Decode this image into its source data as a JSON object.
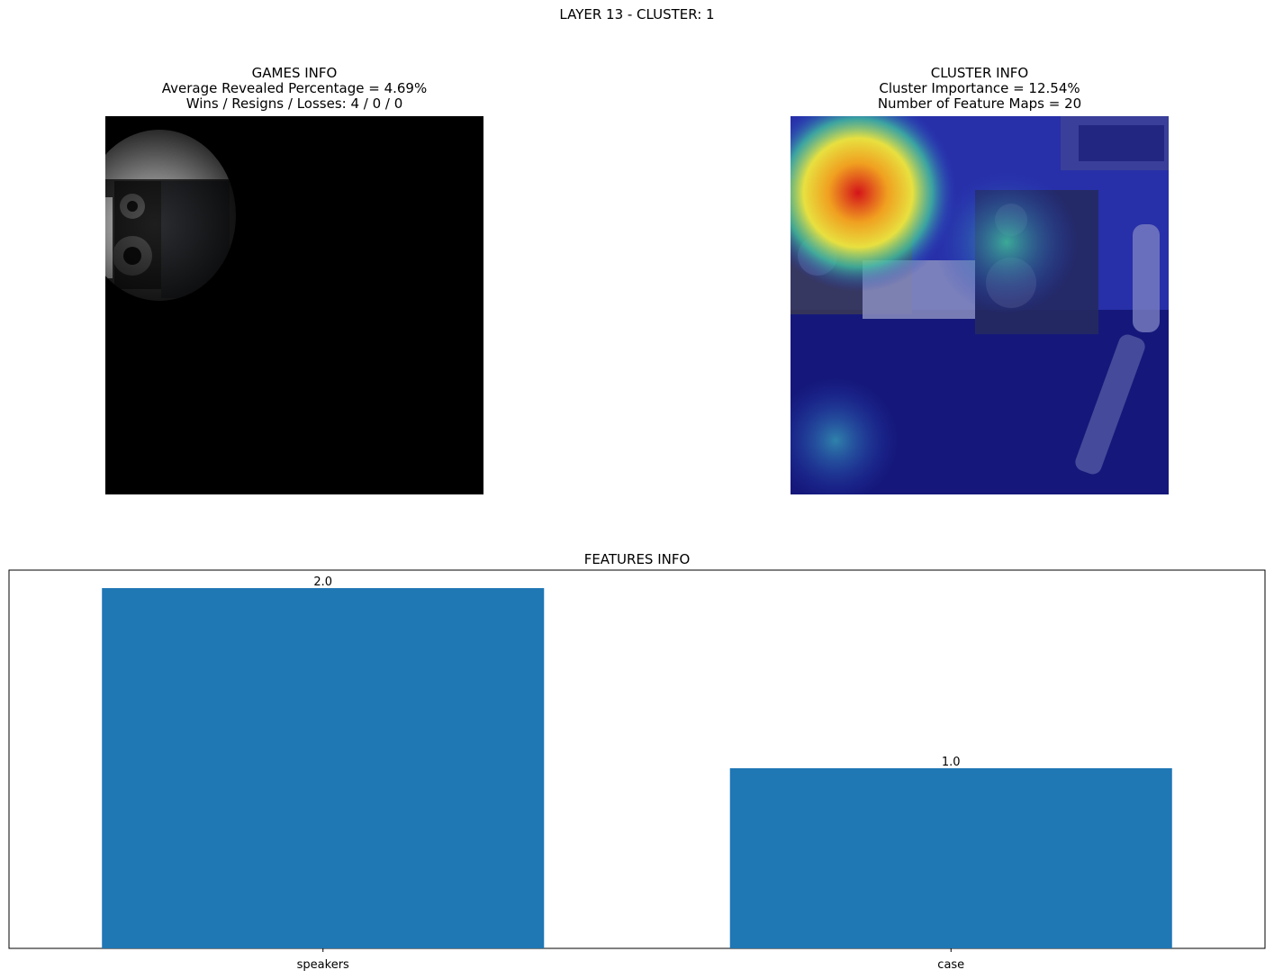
{
  "suptitle": "LAYER 13 - CLUSTER: 1",
  "games_info": {
    "title": "GAMES INFO",
    "line1": "Average Revealed Percentage = 4.69%",
    "line2": "Wins / Resigns / Losses: 4 / 0 / 0"
  },
  "cluster_info": {
    "title": "CLUSTER INFO",
    "line1": "Cluster Importance = 12.54%",
    "line2": "Number of Feature Maps = 20"
  },
  "chart_data": {
    "type": "bar",
    "title": "FEATURES INFO",
    "categories": [
      "speakers",
      "case"
    ],
    "values": [
      2.0,
      1.0
    ],
    "value_labels": [
      "2.0",
      "1.0"
    ],
    "xlabel": "",
    "ylabel": "",
    "ylim": [
      0,
      2.1
    ],
    "grid": false,
    "bar_color": "#1f77b4"
  }
}
